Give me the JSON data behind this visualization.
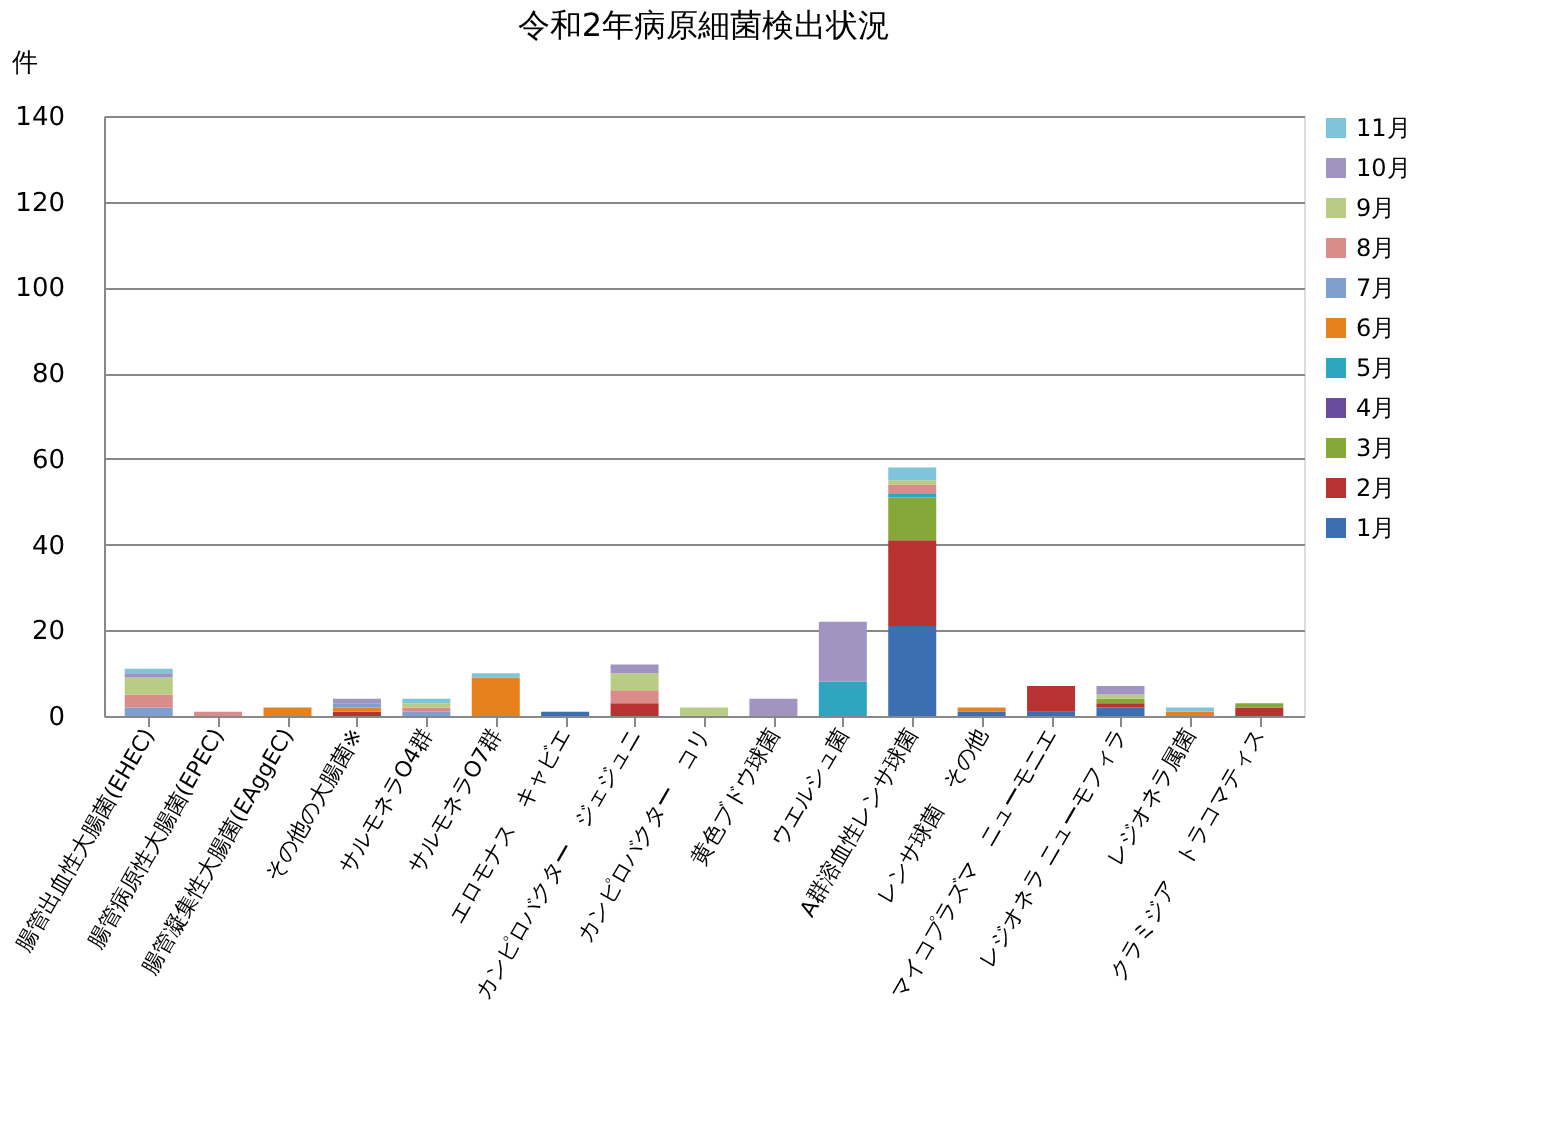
{
  "chart_data": {
    "type": "bar",
    "title": "令和2年病原細菌検出状況",
    "ylabel": "件",
    "stacked": true,
    "categories": [
      "腸管出血性大腸菌(EHEC)",
      "腸管病原性大腸菌(EPEC)",
      "腸管凝集性大腸菌(EAggEC)",
      "その他の大腸菌※",
      "サルモネラO4群",
      "サルモネラO7群",
      "エロモナス　キャビエ",
      "カンピロバクター　ジェジュニ",
      "カンピロバクター　コリ",
      "黄色ブドウ球菌",
      "ウエルシュ菌",
      "A群溶血性レンサ球菌",
      "レンサ球菌　その他",
      "マイコプラズマ　ニューモニエ",
      "レジオネラ ニューモフィラ",
      "レジオネラ属菌",
      "クラミジア　トラコマティス"
    ],
    "series": [
      {
        "name": "1月",
        "color": "#3c6eb4",
        "values": [
          0,
          0,
          0,
          0,
          0,
          0,
          1,
          0,
          0,
          0,
          0,
          21,
          1,
          1,
          2,
          0,
          0
        ]
      },
      {
        "name": "2月",
        "color": "#b83232",
        "values": [
          0,
          0,
          0,
          1,
          0,
          0,
          0,
          3,
          0,
          0,
          0,
          20,
          0,
          6,
          1,
          0,
          2
        ]
      },
      {
        "name": "3月",
        "color": "#86a83a",
        "values": [
          0,
          0,
          0,
          0,
          0,
          0,
          0,
          0,
          0,
          0,
          0,
          10,
          0,
          0,
          1,
          0,
          1
        ]
      },
      {
        "name": "4月",
        "color": "#6a4c9c",
        "values": [
          0,
          0,
          0,
          0,
          0,
          0,
          0,
          0,
          0,
          0,
          0,
          0,
          0,
          0,
          0,
          0,
          0
        ]
      },
      {
        "name": "5月",
        "color": "#2ea6c0",
        "values": [
          0,
          0,
          0,
          0,
          0,
          0,
          0,
          0,
          0,
          0,
          8,
          1,
          0,
          0,
          0,
          0,
          0
        ]
      },
      {
        "name": "6月",
        "color": "#e6811e",
        "values": [
          0,
          0,
          2,
          1,
          0,
          9,
          0,
          0,
          0,
          0,
          0,
          0,
          1,
          0,
          0,
          1,
          0
        ]
      },
      {
        "name": "7月",
        "color": "#7f9fd0",
        "values": [
          2,
          0,
          0,
          1,
          1,
          0,
          0,
          0,
          0,
          0,
          0,
          0,
          0,
          0,
          0,
          0,
          0
        ]
      },
      {
        "name": "8月",
        "color": "#d98c8a",
        "values": [
          3,
          1,
          0,
          0,
          1,
          0,
          0,
          3,
          0,
          0,
          0,
          2,
          0,
          0,
          0,
          0,
          0
        ]
      },
      {
        "name": "9月",
        "color": "#b8cc84",
        "values": [
          4,
          0,
          0,
          0,
          1,
          0,
          0,
          4,
          2,
          0,
          0,
          1,
          0,
          0,
          1,
          0,
          0
        ]
      },
      {
        "name": "10月",
        "color": "#a294c0",
        "values": [
          1,
          0,
          0,
          1,
          0,
          0,
          0,
          2,
          0,
          4,
          14,
          0,
          0,
          0,
          2,
          0,
          0
        ]
      },
      {
        "name": "11月",
        "color": "#7fc4d8",
        "values": [
          1,
          0,
          0,
          0,
          1,
          1,
          0,
          0,
          0,
          0,
          0,
          3,
          0,
          0,
          0,
          1,
          0
        ]
      }
    ],
    "ylim": [
      0,
      140
    ],
    "yticks": [
      0,
      20,
      40,
      60,
      80,
      100,
      120,
      140
    ],
    "grid": "y",
    "legend": "right"
  }
}
